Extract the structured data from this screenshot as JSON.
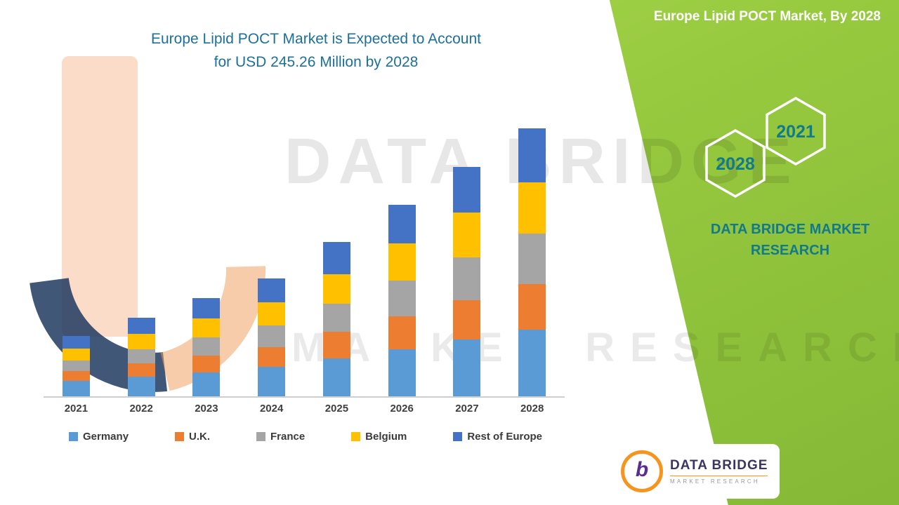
{
  "header": {
    "main_title_line1": "Europe Lipid POCT Market is Expected to Account",
    "main_title_line2": "for USD 245.26 Million by 2028",
    "side_title": "Europe Lipid POCT Market, By 2028"
  },
  "green_panel": {
    "hexagon_left_label": "2028",
    "hexagon_right_label": "2021",
    "brand_line1": "DATA BRIDGE MARKET",
    "brand_line2": "RESEARCH",
    "accent_green": "#97c93f",
    "teal": "#117a8b"
  },
  "watermark": {
    "line1": "DATA BRIDGE",
    "line2": "MARKET RESEARCH"
  },
  "logo": {
    "name": "DATA BRIDGE",
    "subtitle": "MARKET RESEARCH",
    "monogram": "b"
  },
  "chart_data": {
    "type": "bar",
    "stacked": true,
    "title": "Europe Lipid POCT Market is Expected to Account for USD 245.26 Million by 2028",
    "unit": "USD Million",
    "categories": [
      "2021",
      "2022",
      "2023",
      "2024",
      "2025",
      "2026",
      "2027",
      "2028"
    ],
    "series": [
      {
        "name": "Germany",
        "color": "#5B9BD5",
        "values": [
          14,
          18,
          22,
          27,
          35,
          43,
          52,
          61
        ]
      },
      {
        "name": "U.K.",
        "color": "#ED7D31",
        "values": [
          9,
          12,
          15,
          18,
          24,
          30,
          36,
          42
        ]
      },
      {
        "name": "France",
        "color": "#A5A5A5",
        "values": [
          10,
          13,
          17,
          20,
          26,
          33,
          39,
          46
        ]
      },
      {
        "name": "Belgium",
        "color": "#FFC000",
        "values": [
          11,
          14,
          17,
          21,
          27,
          34,
          41,
          47
        ]
      },
      {
        "name": "Rest of Europe",
        "color": "#4472C4",
        "values": [
          11,
          15,
          19,
          22,
          29,
          35,
          42,
          49.26
        ]
      }
    ],
    "totals": [
      55,
      72,
      90,
      108,
      141,
      175,
      210,
      245.26
    ],
    "ylim": [
      0,
      260
    ],
    "grid": false,
    "legend_position": "bottom"
  }
}
